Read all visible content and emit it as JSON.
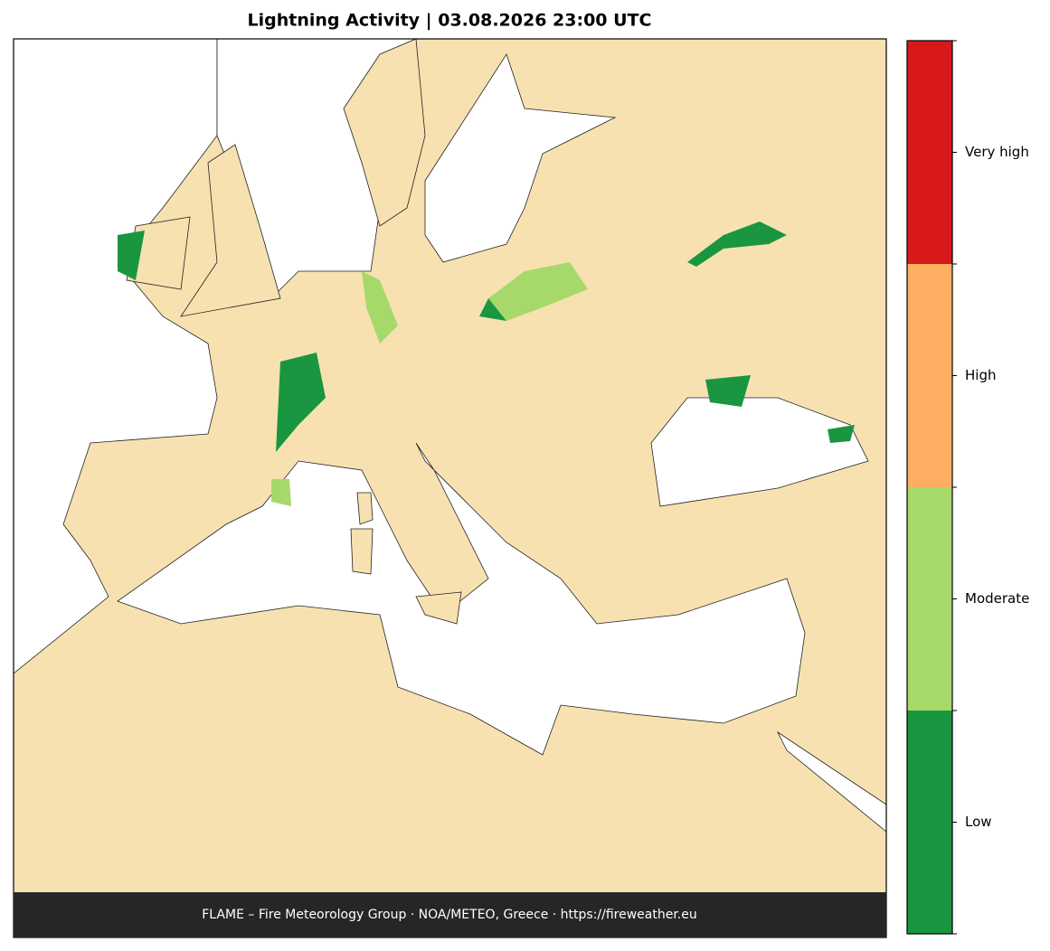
{
  "header": {
    "title": "Lightning Activity  |  03.08.2026 23:00 UTC"
  },
  "colorbar": {
    "levels": [
      {
        "label": "Low",
        "color": "#1a9641"
      },
      {
        "label": "Moderate",
        "color": "#a6d96a"
      },
      {
        "label": "High",
        "color": "#fdae61"
      },
      {
        "label": "Very high",
        "color": "#d7191c"
      }
    ]
  },
  "footer": {
    "text": "FLAME – Fire Meteorology Group · NOA/METEO, Greece · https://fireweather.eu"
  }
}
